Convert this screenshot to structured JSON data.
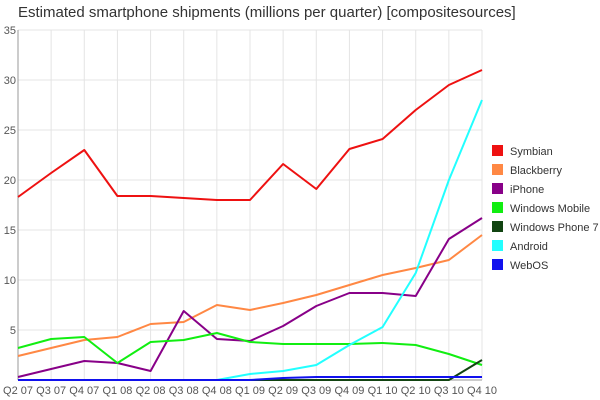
{
  "chart_data": {
    "type": "line",
    "title": "Estimated smartphone shipments (millions per quarter) [compositesources]",
    "xlabel": "",
    "ylabel": "",
    "categories": [
      "Q2 07",
      "Q3 07",
      "Q4 07",
      "Q1 08",
      "Q2 08",
      "Q3 08",
      "Q4 08",
      "Q1 09",
      "Q2 09",
      "Q3 09",
      "Q4 09",
      "Q1 10",
      "Q2 10",
      "Q3 10",
      "Q4 10"
    ],
    "x_tick_labels": [
      "Q2 07",
      "Q3 07",
      "Q4 07",
      "Q1 08",
      "Q2 08",
      "Q3 08",
      "Q4 08",
      "Q1 09",
      "Q2 09",
      "Q3 09",
      "Q4 09",
      "Q1 10",
      "Q2 10",
      "Q3 10",
      "Q4 10"
    ],
    "y_ticks": [
      5,
      10,
      15,
      20,
      25,
      30,
      35
    ],
    "ylim": [
      0,
      35
    ],
    "grid": true,
    "legend_position": "right",
    "series": [
      {
        "name": "Symbian",
        "color": "#ee1111",
        "values": [
          18.3,
          20.7,
          23.0,
          18.4,
          18.4,
          18.2,
          18.0,
          18.0,
          21.6,
          19.1,
          23.1,
          24.1,
          27.0,
          29.5,
          31.0
        ]
      },
      {
        "name": "Blackberry",
        "color": "#ff8844",
        "values": [
          2.4,
          3.2,
          4.0,
          4.3,
          5.6,
          5.8,
          7.5,
          7.0,
          7.7,
          8.5,
          9.5,
          10.5,
          11.2,
          12.0,
          14.5
        ]
      },
      {
        "name": "iPhone",
        "color": "#880088",
        "values": [
          0.3,
          1.1,
          1.9,
          1.7,
          0.9,
          6.9,
          4.1,
          3.9,
          5.4,
          7.4,
          8.7,
          8.7,
          8.4,
          14.1,
          16.2
        ]
      },
      {
        "name": "Windows Mobile",
        "color": "#11ee11",
        "values": [
          3.2,
          4.1,
          4.3,
          1.7,
          3.8,
          4.0,
          4.7,
          3.8,
          3.6,
          3.6,
          3.6,
          3.7,
          3.5,
          2.6,
          1.5
        ]
      },
      {
        "name": "Windows Phone 7",
        "color": "#114411",
        "values": [
          0,
          0,
          0,
          0,
          0,
          0,
          0,
          0,
          0,
          0,
          0,
          0,
          0,
          0,
          2.0
        ]
      },
      {
        "name": "Android",
        "color": "#22ffff",
        "values": [
          0,
          0,
          0,
          0,
          0,
          0,
          0,
          0.6,
          0.9,
          1.5,
          3.5,
          5.3,
          10.7,
          20.0,
          28.0
        ]
      },
      {
        "name": "WebOS",
        "color": "#1111ee",
        "values": [
          0,
          0,
          0,
          0,
          0,
          0,
          0,
          0,
          0.2,
          0.3,
          0.3,
          0.3,
          0.3,
          0.3,
          0.3
        ]
      }
    ]
  }
}
